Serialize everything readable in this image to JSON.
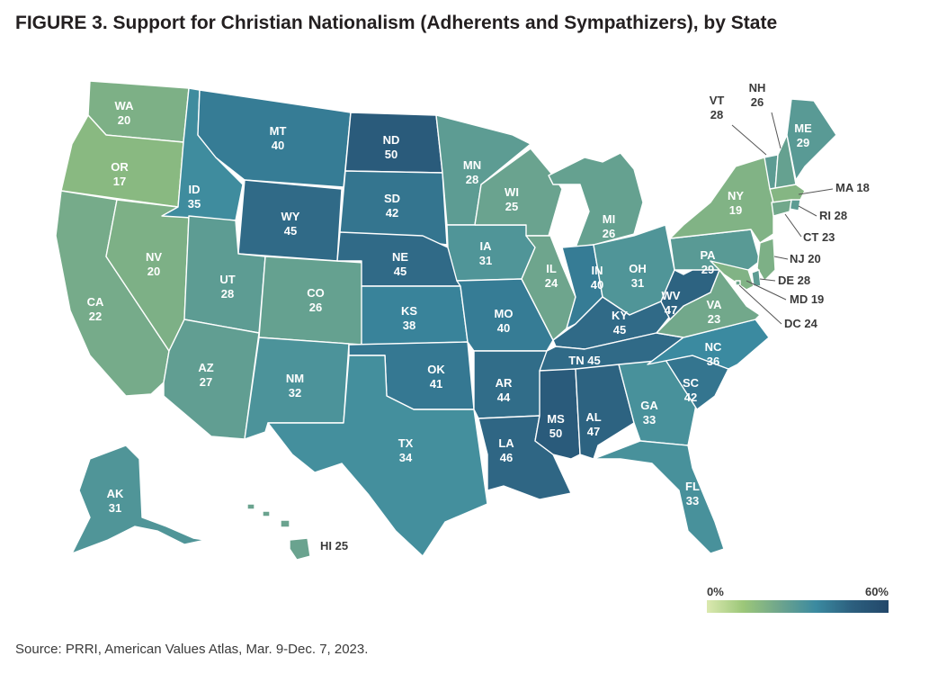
{
  "title": "FIGURE 3.  Support for Christian Nationalism (Adherents and Sympathizers), by State",
  "source": "Source: PRRI, American Values Atlas, Mar. 9-Dec. 7, 2023.",
  "legend": {
    "min_label": "0%",
    "max_label": "60%",
    "min_value": 0,
    "max_value": 60,
    "color_stops": [
      "#dbe9b0",
      "#9cc779",
      "#6ea58d",
      "#3b8aa0",
      "#2c5f7e",
      "#22476a"
    ]
  },
  "unit": "percent",
  "states": [
    {
      "abbr": "WA",
      "value": 20
    },
    {
      "abbr": "OR",
      "value": 17
    },
    {
      "abbr": "CA",
      "value": 22
    },
    {
      "abbr": "NV",
      "value": 20
    },
    {
      "abbr": "ID",
      "value": 35
    },
    {
      "abbr": "MT",
      "value": 40
    },
    {
      "abbr": "WY",
      "value": 45
    },
    {
      "abbr": "UT",
      "value": 28
    },
    {
      "abbr": "AZ",
      "value": 27
    },
    {
      "abbr": "CO",
      "value": 26
    },
    {
      "abbr": "NM",
      "value": 32
    },
    {
      "abbr": "ND",
      "value": 50
    },
    {
      "abbr": "SD",
      "value": 42
    },
    {
      "abbr": "NE",
      "value": 45
    },
    {
      "abbr": "KS",
      "value": 38
    },
    {
      "abbr": "OK",
      "value": 41
    },
    {
      "abbr": "TX",
      "value": 34
    },
    {
      "abbr": "MN",
      "value": 28
    },
    {
      "abbr": "IA",
      "value": 31
    },
    {
      "abbr": "MO",
      "value": 40
    },
    {
      "abbr": "AR",
      "value": 44
    },
    {
      "abbr": "LA",
      "value": 46
    },
    {
      "abbr": "WI",
      "value": 25
    },
    {
      "abbr": "IL",
      "value": 24
    },
    {
      "abbr": "MI",
      "value": 26
    },
    {
      "abbr": "IN",
      "value": 40
    },
    {
      "abbr": "OH",
      "value": 31
    },
    {
      "abbr": "KY",
      "value": 45
    },
    {
      "abbr": "TN",
      "value": 45
    },
    {
      "abbr": "MS",
      "value": 50
    },
    {
      "abbr": "AL",
      "value": 47
    },
    {
      "abbr": "GA",
      "value": 33
    },
    {
      "abbr": "FL",
      "value": 33
    },
    {
      "abbr": "SC",
      "value": 42
    },
    {
      "abbr": "NC",
      "value": 36
    },
    {
      "abbr": "VA",
      "value": 23
    },
    {
      "abbr": "WV",
      "value": 47
    },
    {
      "abbr": "PA",
      "value": 29
    },
    {
      "abbr": "NY",
      "value": 19
    },
    {
      "abbr": "VT",
      "value": 28
    },
    {
      "abbr": "NH",
      "value": 26
    },
    {
      "abbr": "ME",
      "value": 29
    },
    {
      "abbr": "MA",
      "value": 18
    },
    {
      "abbr": "RI",
      "value": 28
    },
    {
      "abbr": "CT",
      "value": 23
    },
    {
      "abbr": "NJ",
      "value": 20
    },
    {
      "abbr": "DE",
      "value": 28
    },
    {
      "abbr": "MD",
      "value": 19
    },
    {
      "abbr": "DC",
      "value": 24
    },
    {
      "abbr": "AK",
      "value": 31
    },
    {
      "abbr": "HI",
      "value": 25
    }
  ]
}
